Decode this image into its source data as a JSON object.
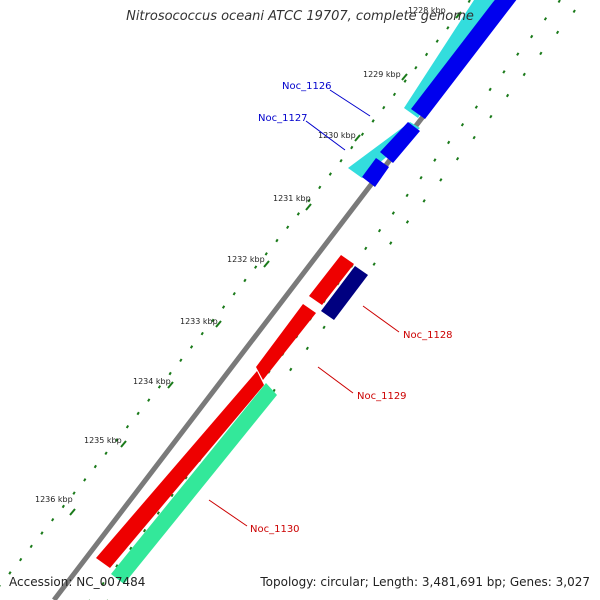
{
  "title": "Nitrosococcus oceani ATCC 19707, complete genome",
  "footer": {
    "accession": "Accession: NC_007484",
    "summary": "Topology: circular; Length: 3,481,691 bp; Genes: 3,027"
  },
  "scale": {
    "tick_labels": [
      "1228 kbp",
      "1229 kbp",
      "1230 kbp",
      "1231 kbp",
      "1232 kbp",
      "1233 kbp",
      "1234 kbp",
      "1235 kbp",
      "1236 kbp"
    ]
  },
  "genes": [
    {
      "id": "Noc_1126",
      "label": "Noc_1126",
      "label_color": "#0000cc"
    },
    {
      "id": "Noc_1127",
      "label": "Noc_1127",
      "label_color": "#0000cc"
    },
    {
      "id": "Noc_1128",
      "label": "Noc_1128",
      "label_color": "#cc0000"
    },
    {
      "id": "Noc_1129",
      "label": "Noc_1129",
      "label_color": "#cc0000"
    },
    {
      "id": "Noc_1130",
      "label": "Noc_1130",
      "label_color": "#cc0000"
    }
  ],
  "colors": {
    "backbone": "#7a7a7a",
    "cyan": "#33dddd",
    "blue": "#0000ee",
    "navy": "#000080",
    "red": "#ee0000",
    "green": "#33e89a",
    "dots": "#1a7a1a"
  }
}
